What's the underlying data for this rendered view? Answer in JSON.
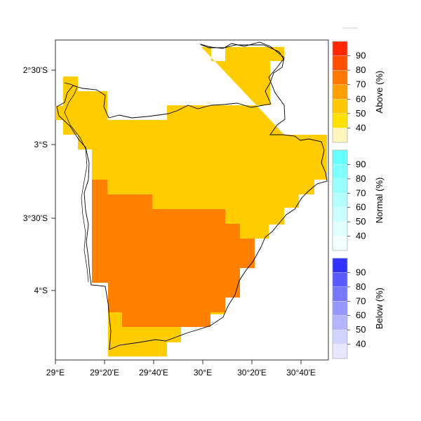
{
  "map": {
    "x_ticks": [
      "29°E",
      "29°20'E",
      "29°40'E",
      "30°E",
      "30°20'E",
      "30°40'E"
    ],
    "y_ticks": [
      "2°30'S",
      "3°S",
      "3°30'S",
      "4°S"
    ],
    "fills": {
      "above_50": "#FFCC00",
      "above_70": "#FF7F00"
    }
  },
  "legend": {
    "above": {
      "title": "Above (%)",
      "labels": [
        "40",
        "50",
        "60",
        "70",
        "80",
        "90"
      ],
      "colors": [
        "#FFF5C0",
        "#FFE100",
        "#FFC800",
        "#FFA000",
        "#FF7800",
        "#FF5000",
        "#FF2800"
      ]
    },
    "normal": {
      "title": "Normal (%)",
      "labels": [
        "40",
        "50",
        "60",
        "70",
        "80",
        "90"
      ],
      "colors": [
        "#F2FFFF",
        "#E0FFFF",
        "#CCFFFF",
        "#B3FFFF",
        "#99FFFF",
        "#80FFFF",
        "#66FFFF"
      ]
    },
    "below": {
      "title": "Below (%)",
      "labels": [
        "40",
        "50",
        "60",
        "70",
        "80",
        "90"
      ],
      "colors": [
        "#E6E6FF",
        "#D2D2FF",
        "#B4B4FF",
        "#9696FF",
        "#7878FF",
        "#5A5AFF",
        "#3232FF"
      ]
    }
  }
}
